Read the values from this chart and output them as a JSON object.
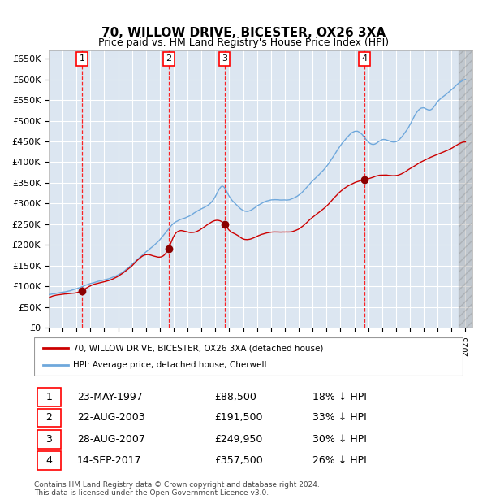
{
  "title": "70, WILLOW DRIVE, BICESTER, OX26 3XA",
  "subtitle": "Price paid vs. HM Land Registry's House Price Index (HPI)",
  "ylabel_ticks": [
    "£0",
    "£50K",
    "£100K",
    "£150K",
    "£200K",
    "£250K",
    "£300K",
    "£350K",
    "£400K",
    "£450K",
    "£500K",
    "£550K",
    "£600K",
    "£650K"
  ],
  "ytick_values": [
    0,
    50000,
    100000,
    150000,
    200000,
    250000,
    300000,
    350000,
    400000,
    450000,
    500000,
    550000,
    600000,
    650000
  ],
  "x_start_year": 1995,
  "x_end_year": 2025,
  "purchases": [
    {
      "date_num": 1997.39,
      "price": 88500,
      "label": "1"
    },
    {
      "date_num": 2003.64,
      "price": 191500,
      "label": "2"
    },
    {
      "date_num": 2007.65,
      "price": 249950,
      "label": "3"
    },
    {
      "date_num": 2017.71,
      "price": 357500,
      "label": "4"
    }
  ],
  "legend_line1": "70, WILLOW DRIVE, BICESTER, OX26 3XA (detached house)",
  "legend_line2": "HPI: Average price, detached house, Cherwell",
  "table_rows": [
    {
      "num": "1",
      "date": "23-MAY-1997",
      "price": "£88,500",
      "hpi": "18% ↓ HPI"
    },
    {
      "num": "2",
      "date": "22-AUG-2003",
      "price": "£191,500",
      "hpi": "33% ↓ HPI"
    },
    {
      "num": "3",
      "date": "28-AUG-2007",
      "price": "£249,950",
      "hpi": "30% ↓ HPI"
    },
    {
      "num": "4",
      "date": "14-SEP-2017",
      "price": "£357,500",
      "hpi": "26% ↓ HPI"
    }
  ],
  "footnote1": "Contains HM Land Registry data © Crown copyright and database right 2024.",
  "footnote2": "This data is licensed under the Open Government Licence v3.0.",
  "hpi_color": "#6fa8dc",
  "price_color": "#cc0000",
  "bg_color": "#dce6f1",
  "plot_bg": "#dce6f1",
  "grid_color": "#ffffff",
  "vline_color": "#ff0000"
}
